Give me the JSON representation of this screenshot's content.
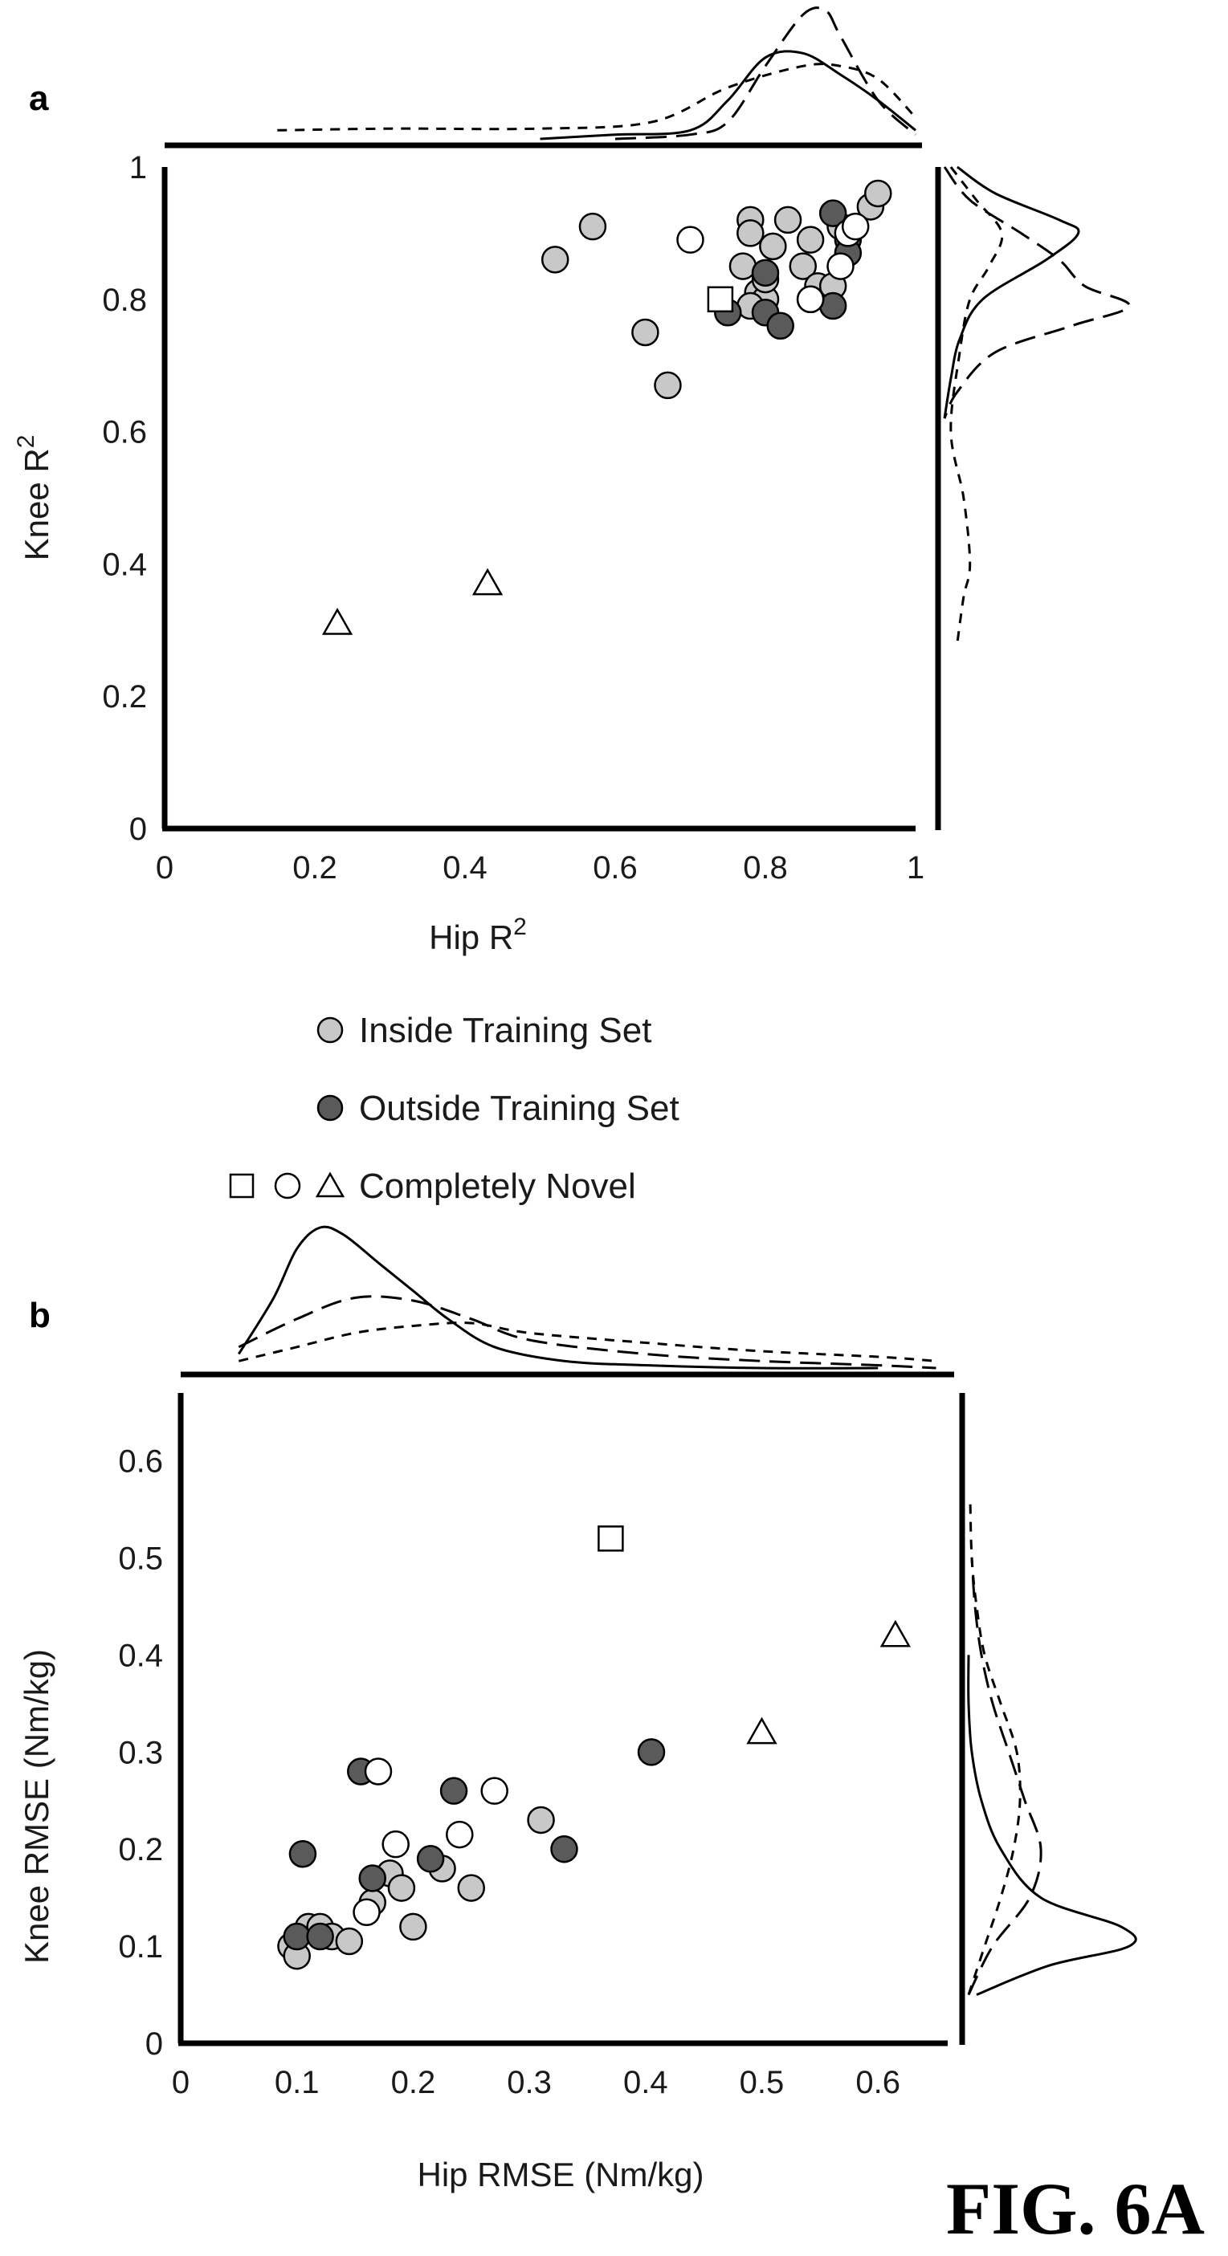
{
  "figure_label": "FIG. 6A",
  "legend": {
    "inside": "Inside Training Set",
    "outside": "Outside Training Set",
    "novel": "Completely Novel"
  },
  "colors": {
    "inside": "#c8c8c8",
    "outside": "#5a5a5a",
    "novel": "#ffffff",
    "stroke": "#000000"
  },
  "chart_data": [
    {
      "type": "scatter",
      "panel": "a",
      "xlabel": "Hip R",
      "xlabel_sup": "2",
      "ylabel": "Knee R",
      "ylabel_sup": "2",
      "xlim": [
        0,
        1
      ],
      "ylim": [
        0,
        1
      ],
      "x_ticks": [
        "0",
        "0.2",
        "0.4",
        "0.6",
        "0.8",
        "1"
      ],
      "x_tick_values": [
        0,
        0.2,
        0.4,
        0.6,
        0.8,
        1
      ],
      "y_ticks": [
        "0",
        "0.2",
        "0.4",
        "0.6",
        "0.8",
        "1"
      ],
      "y_tick_values": [
        0,
        0.2,
        0.4,
        0.6,
        0.8,
        1
      ],
      "series": [
        {
          "name": "Inside Training Set",
          "marker": "circle",
          "fill": "inside",
          "points": [
            [
              0.52,
              0.86
            ],
            [
              0.57,
              0.91
            ],
            [
              0.64,
              0.75
            ],
            [
              0.67,
              0.67
            ],
            [
              0.78,
              0.92
            ],
            [
              0.78,
              0.9
            ],
            [
              0.77,
              0.85
            ],
            [
              0.79,
              0.81
            ],
            [
              0.8,
              0.8
            ],
            [
              0.81,
              0.88
            ],
            [
              0.83,
              0.92
            ],
            [
              0.85,
              0.85
            ],
            [
              0.86,
              0.89
            ],
            [
              0.87,
              0.82
            ],
            [
              0.89,
              0.82
            ],
            [
              0.9,
              0.91
            ],
            [
              0.94,
              0.94
            ],
            [
              0.95,
              0.96
            ],
            [
              0.78,
              0.79
            ],
            [
              0.8,
              0.83
            ]
          ]
        },
        {
          "name": "Outside Training Set",
          "marker": "circle",
          "fill": "outside",
          "points": [
            [
              0.75,
              0.78
            ],
            [
              0.8,
              0.84
            ],
            [
              0.8,
              0.78
            ],
            [
              0.82,
              0.76
            ],
            [
              0.89,
              0.79
            ],
            [
              0.89,
              0.93
            ],
            [
              0.91,
              0.89
            ],
            [
              0.91,
              0.87
            ],
            [
              0.86,
              0.8
            ]
          ]
        },
        {
          "name": "Completely Novel",
          "marker": "circle",
          "fill": "novel",
          "points": [
            [
              0.7,
              0.89
            ],
            [
              0.86,
              0.8
            ],
            [
              0.9,
              0.85
            ],
            [
              0.91,
              0.9
            ],
            [
              0.92,
              0.91
            ]
          ]
        },
        {
          "name": "Completely Novel",
          "marker": "square",
          "fill": "novel",
          "points": [
            [
              0.74,
              0.8
            ]
          ]
        },
        {
          "name": "Completely Novel",
          "marker": "triangle",
          "fill": "novel",
          "points": [
            [
              0.23,
              0.31
            ],
            [
              0.43,
              0.37
            ]
          ]
        }
      ],
      "density_top": [
        {
          "style": "solid",
          "x": [
            0.5,
            0.6,
            0.7,
            0.75,
            0.8,
            0.85,
            0.9,
            0.95,
            1.0
          ],
          "d": [
            0.0,
            0.05,
            0.1,
            0.45,
            0.95,
            1.0,
            0.75,
            0.45,
            0.1
          ]
        },
        {
          "style": "longdash",
          "x": [
            0.6,
            0.7,
            0.75,
            0.8,
            0.85,
            0.88,
            0.9,
            0.95,
            1.0
          ],
          "d": [
            0.0,
            0.05,
            0.2,
            0.85,
            1.45,
            1.5,
            1.2,
            0.45,
            0.05
          ]
        },
        {
          "style": "shortdash",
          "x": [
            0.15,
            0.3,
            0.5,
            0.65,
            0.75,
            0.85,
            0.9,
            0.95,
            1.0
          ],
          "d": [
            0.1,
            0.12,
            0.12,
            0.2,
            0.6,
            0.85,
            0.85,
            0.7,
            0.25
          ]
        }
      ],
      "density_right": [
        {
          "style": "solid",
          "y": [
            1.0,
            0.96,
            0.92,
            0.9,
            0.86,
            0.8,
            0.74,
            0.68,
            0.62
          ],
          "d": [
            0.1,
            0.4,
            0.9,
            1.05,
            0.8,
            0.3,
            0.12,
            0.05,
            0.0
          ]
        },
        {
          "style": "longdash",
          "y": [
            1.0,
            0.95,
            0.9,
            0.86,
            0.82,
            0.79,
            0.76,
            0.72,
            0.66,
            0.62
          ],
          "d": [
            0.0,
            0.2,
            0.6,
            0.9,
            1.1,
            1.45,
            1.0,
            0.4,
            0.1,
            0.0
          ]
        },
        {
          "style": "shortdash",
          "y": [
            1.0,
            0.95,
            0.9,
            0.85,
            0.8,
            0.72,
            0.6,
            0.5,
            0.4,
            0.35,
            0.28
          ],
          "d": [
            0.05,
            0.25,
            0.45,
            0.35,
            0.2,
            0.12,
            0.05,
            0.15,
            0.2,
            0.15,
            0.1
          ]
        }
      ]
    },
    {
      "type": "scatter",
      "panel": "b",
      "xlabel": "Hip RMSE (Nm/kg)",
      "ylabel": "Knee RMSE (Nm/kg)",
      "xlim": [
        0,
        0.66
      ],
      "ylim": [
        0,
        0.67
      ],
      "x_ticks": [
        "0",
        "0.1",
        "0.2",
        "0.3",
        "0.4",
        "0.5",
        "0.6"
      ],
      "x_tick_values": [
        0,
        0.1,
        0.2,
        0.3,
        0.4,
        0.5,
        0.6
      ],
      "y_ticks": [
        "0",
        "0.1",
        "0.2",
        "0.3",
        "0.4",
        "0.5",
        "0.6"
      ],
      "y_tick_values": [
        0,
        0.1,
        0.2,
        0.3,
        0.4,
        0.5,
        0.6
      ],
      "series": [
        {
          "name": "Inside Training Set",
          "marker": "circle",
          "fill": "inside",
          "points": [
            [
              0.095,
              0.1
            ],
            [
              0.1,
              0.09
            ],
            [
              0.11,
              0.12
            ],
            [
              0.12,
              0.12
            ],
            [
              0.13,
              0.11
            ],
            [
              0.145,
              0.105
            ],
            [
              0.165,
              0.145
            ],
            [
              0.18,
              0.175
            ],
            [
              0.19,
              0.16
            ],
            [
              0.2,
              0.12
            ],
            [
              0.225,
              0.18
            ],
            [
              0.25,
              0.16
            ],
            [
              0.31,
              0.23
            ]
          ]
        },
        {
          "name": "Outside Training Set",
          "marker": "circle",
          "fill": "outside",
          "points": [
            [
              0.1,
              0.11
            ],
            [
              0.105,
              0.195
            ],
            [
              0.12,
              0.11
            ],
            [
              0.155,
              0.28
            ],
            [
              0.165,
              0.17
            ],
            [
              0.215,
              0.19
            ],
            [
              0.235,
              0.26
            ],
            [
              0.33,
              0.2
            ],
            [
              0.405,
              0.3
            ]
          ]
        },
        {
          "name": "Completely Novel",
          "marker": "circle",
          "fill": "novel",
          "points": [
            [
              0.16,
              0.135
            ],
            [
              0.17,
              0.28
            ],
            [
              0.185,
              0.205
            ],
            [
              0.24,
              0.215
            ],
            [
              0.27,
              0.26
            ]
          ]
        },
        {
          "name": "Completely Novel",
          "marker": "square",
          "fill": "novel",
          "points": [
            [
              0.37,
              0.52
            ]
          ]
        },
        {
          "name": "Completely Novel",
          "marker": "triangle",
          "fill": "novel",
          "points": [
            [
              0.5,
              0.32
            ],
            [
              0.615,
              0.42
            ]
          ]
        }
      ],
      "density_top": [
        {
          "style": "solid",
          "x": [
            0.05,
            0.08,
            0.1,
            0.12,
            0.14,
            0.17,
            0.2,
            0.23,
            0.27,
            0.33,
            0.4,
            0.5,
            0.6
          ],
          "d": [
            0.1,
            0.5,
            0.85,
            1.0,
            0.95,
            0.75,
            0.55,
            0.35,
            0.15,
            0.05,
            0.02,
            0.0,
            0.0
          ]
        },
        {
          "style": "longdash",
          "x": [
            0.05,
            0.1,
            0.15,
            0.2,
            0.25,
            0.3,
            0.4,
            0.5,
            0.6,
            0.65
          ],
          "d": [
            0.15,
            0.35,
            0.5,
            0.48,
            0.35,
            0.2,
            0.1,
            0.05,
            0.02,
            0.0
          ]
        },
        {
          "style": "shortdash",
          "x": [
            0.05,
            0.1,
            0.15,
            0.2,
            0.25,
            0.3,
            0.4,
            0.5,
            0.6,
            0.65
          ],
          "d": [
            0.05,
            0.15,
            0.25,
            0.3,
            0.32,
            0.25,
            0.18,
            0.12,
            0.08,
            0.05
          ]
        }
      ],
      "density_right": [
        {
          "style": "solid",
          "y": [
            0.05,
            0.08,
            0.1,
            0.12,
            0.15,
            0.2,
            0.25,
            0.3,
            0.35,
            0.4
          ],
          "d": [
            0.05,
            0.5,
            1.0,
            0.95,
            0.45,
            0.2,
            0.08,
            0.02,
            0.0,
            0.0
          ]
        },
        {
          "style": "longdash",
          "y": [
            0.05,
            0.1,
            0.15,
            0.2,
            0.25,
            0.3,
            0.35,
            0.4,
            0.45,
            0.5
          ],
          "d": [
            0.0,
            0.15,
            0.38,
            0.45,
            0.35,
            0.25,
            0.15,
            0.08,
            0.04,
            0.02
          ]
        },
        {
          "style": "shortdash",
          "y": [
            0.05,
            0.1,
            0.15,
            0.2,
            0.25,
            0.3,
            0.35,
            0.4,
            0.45,
            0.5,
            0.56
          ],
          "d": [
            0.0,
            0.1,
            0.2,
            0.28,
            0.32,
            0.3,
            0.2,
            0.1,
            0.05,
            0.02,
            0.01
          ]
        }
      ]
    }
  ]
}
